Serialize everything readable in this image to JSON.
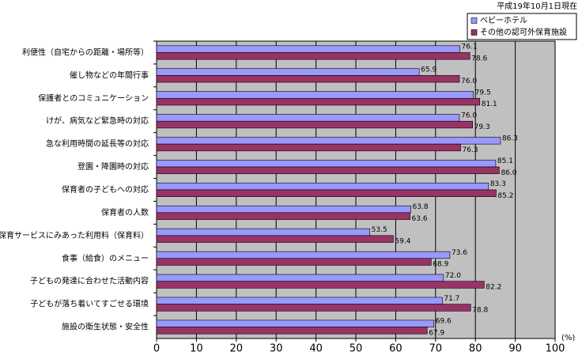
{
  "chart_data": {
    "type": "bar",
    "orientation": "horizontal",
    "note": "平成19年10月1日現在",
    "x_unit": "(%)",
    "categories": [
      "利便性（自宅からの距離・場所等）",
      "催し物などの年間行事",
      "保護者とのコミュニケーション",
      "けが、病気など緊急時の対応",
      "急な利用時間の延長等の対応",
      "登園・降園時の対応",
      "保育者の子どもへの対応",
      "保育者の人数",
      "保育サービスにみあった利用料（保育料）",
      "食事（給食）のメニュー",
      "子どもの発達に合わせた活動内容",
      "子どもが落ち着いてすごせる環境",
      "施設の衛生状態・安全性"
    ],
    "series": [
      {
        "name": "ベビーホテル",
        "color": "#9999ff",
        "values": [
          76.1,
          65.9,
          79.5,
          76.0,
          86.3,
          85.1,
          83.3,
          63.8,
          53.5,
          73.6,
          72.0,
          71.7,
          69.6
        ],
        "value_labels": [
          "76.1",
          "65.9",
          "79.5",
          "76.0",
          "86.3",
          "85.1",
          "83.3",
          "63.8",
          "53.5",
          "73.6",
          "72.0",
          "71.7",
          "69.6"
        ]
      },
      {
        "name": "その他の認可外保育施設",
        "color": "#993366",
        "values": [
          78.6,
          76.0,
          81.1,
          79.3,
          76.3,
          86.0,
          85.2,
          63.6,
          59.4,
          68.9,
          82.2,
          78.8,
          67.9
        ],
        "value_labels": [
          "78.6",
          "76.0",
          "81.1",
          "79.3",
          "76.3",
          "86.0",
          "85.2",
          "63.6",
          "59.4",
          "68.9",
          "82.2",
          "78.8",
          "67.9"
        ]
      }
    ],
    "xlim": [
      0,
      100
    ],
    "xticks": [
      0,
      10,
      20,
      30,
      40,
      50,
      60,
      70,
      80,
      90,
      100
    ],
    "grid": true,
    "legend": "top-right",
    "plot_background": "#c0c0c0"
  }
}
